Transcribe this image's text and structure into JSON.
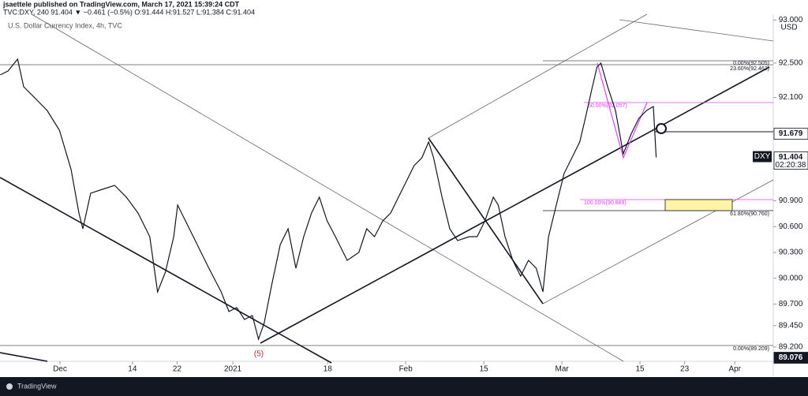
{
  "header": {
    "publisher": "jsaettele published on TradingView.com, March 17, 2021 15:39:24 CDT",
    "quote": "TVC:DXY, 240 91.404 ▼ −0.461 (−0.5%) O:91.444 H:91.527 L:91.384 C:91.404",
    "instrument": "U.S. Dollar Currency Index, 4h, TVC"
  },
  "currency": "USD",
  "footer": "TradingView",
  "chart_data": {
    "type": "line",
    "color": "#131722",
    "x": [
      -10.7,
      -9.3,
      -7.6,
      -6.5,
      -4.4,
      -2.3,
      -0.1,
      2.0,
      3.4,
      4.1,
      5.5,
      7.6,
      9.8,
      11.9,
      14.0,
      16.1,
      17.5,
      18.9,
      20.4,
      21.1,
      22.5,
      24.6,
      26.7,
      28.9,
      30.3,
      31.7,
      33.1,
      34.5,
      35.6,
      36.6,
      38.0,
      39.5,
      40.9,
      42.3,
      43.7,
      45.1,
      46.5,
      47.9,
      49.4,
      51.5,
      53.6,
      55.0,
      56.4,
      57.9,
      59.3,
      60.7,
      62.1,
      63.5,
      64.9,
      66.1,
      67.0,
      68.5,
      69.9,
      71.3,
      73.4,
      74.8,
      76.2,
      77.7,
      78.6,
      79.8,
      81.2,
      82.6,
      84.0,
      85.4,
      86.6,
      87.6,
      89.0,
      90.4,
      91.8,
      93.2,
      94.2,
      95.3,
      96.3,
      97.0,
      98.2,
      99.6,
      101.0,
      102.4,
      103.8,
      105.2,
      106.4,
      106.9
    ],
    "values": [
      92.363,
      92.408,
      92.546,
      92.225,
      92.088,
      91.95,
      91.721,
      91.263,
      90.758,
      90.575,
      90.988,
      91.033,
      91.079,
      90.942,
      90.758,
      90.483,
      89.842,
      90.071,
      90.483,
      90.85,
      90.667,
      90.392,
      90.117,
      89.842,
      89.613,
      89.659,
      89.521,
      89.567,
      89.292,
      89.475,
      89.934,
      90.392,
      90.575,
      90.117,
      90.483,
      90.758,
      90.942,
      90.667,
      90.483,
      90.208,
      90.3,
      90.575,
      90.483,
      90.667,
      90.758,
      90.942,
      91.125,
      91.308,
      91.4,
      91.583,
      91.4,
      90.942,
      90.575,
      90.438,
      90.483,
      90.483,
      90.667,
      90.942,
      90.85,
      90.483,
      90.208,
      90.025,
      90.208,
      90.117,
      89.842,
      90.483,
      90.85,
      91.217,
      91.4,
      91.583,
      91.858,
      92.179,
      92.454,
      92.5,
      92.225,
      91.95,
      91.446,
      91.675,
      91.858,
      91.95,
      91.996,
      91.404
    ],
    "xlim": [
      -10.75,
      127.9
    ],
    "xticks": [
      {
        "value": 0,
        "label": "Dec"
      },
      {
        "value": 13,
        "label": "14"
      },
      {
        "value": 21,
        "label": "22"
      },
      {
        "value": 31,
        "label": "2021"
      },
      {
        "value": 48,
        "label": "18"
      },
      {
        "value": 62,
        "label": "Feb"
      },
      {
        "value": 76,
        "label": "15"
      },
      {
        "value": 90,
        "label": "Mar"
      },
      {
        "value": 104,
        "label": "15"
      },
      {
        "value": 112,
        "label": "23"
      },
      {
        "value": 121,
        "label": "Apr"
      }
    ],
    "ylim": [
      89.035,
      93.068
    ],
    "yticks": [
      {
        "value": 93.0,
        "label": "93.000"
      },
      {
        "value": 92.5,
        "label": "92.500"
      },
      {
        "value": 92.1,
        "label": "92.100"
      },
      {
        "value": 90.9,
        "label": "90.900"
      },
      {
        "value": 90.6,
        "label": "90.600"
      },
      {
        "value": 90.3,
        "label": "90.300"
      },
      {
        "value": 90.0,
        "label": "90.000"
      },
      {
        "value": 89.7,
        "label": "89.700"
      },
      {
        "value": 89.45,
        "label": "89.450"
      },
      {
        "value": 89.2,
        "label": "89.200"
      }
    ],
    "price_markers": [
      {
        "value": 91.679,
        "label": "91.679"
      },
      {
        "value": 91.404,
        "label": "91.404"
      },
      {
        "value": 89.076,
        "label": "89.076"
      }
    ],
    "symbol": "DXY",
    "countdown": "02:20:38",
    "annotations": {
      "fib_0_top": "0.00%(92.505)",
      "fib_236": "23.60%(92.462)",
      "fib_50": "50.00%(92.057)",
      "fib_100": "100.00%(90.889)",
      "fib_618": "61.80%(90.760)",
      "fib_0_bottom": "0.00%(89.209)",
      "wave": "(5)"
    },
    "grid": false
  }
}
